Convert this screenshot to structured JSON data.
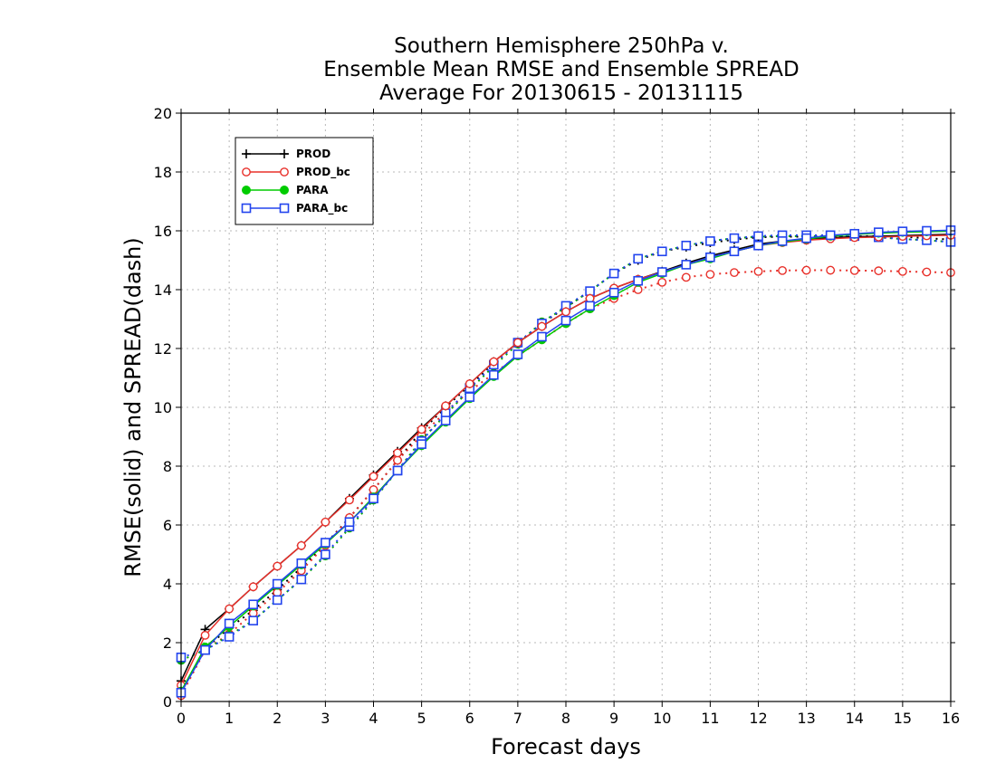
{
  "chart_data": {
    "type": "line",
    "title": [
      "Southern Hemisphere 250hPa v.",
      "Ensemble Mean RMSE and Ensemble SPREAD",
      "Average For 20130615 - 20131115"
    ],
    "xlabel": "Forecast days",
    "ylabel": "RMSE(solid) and SPREAD(dash)",
    "xlim": [
      0,
      16
    ],
    "ylim": [
      0,
      20
    ],
    "xticks": [
      0,
      1,
      2,
      3,
      4,
      5,
      6,
      7,
      8,
      9,
      10,
      11,
      12,
      13,
      14,
      15,
      16
    ],
    "yticks": [
      0,
      2,
      4,
      6,
      8,
      10,
      12,
      14,
      16,
      18,
      20
    ],
    "grid": true,
    "legend_position": "top-left",
    "x": [
      0,
      0.5,
      1,
      1.5,
      2,
      2.5,
      3,
      3.5,
      4,
      4.5,
      5,
      5.5,
      6,
      6.5,
      7,
      7.5,
      8,
      8.5,
      9,
      9.5,
      10,
      10.5,
      11,
      11.5,
      12,
      12.5,
      13,
      13.5,
      14,
      14.5,
      15,
      15.5,
      16
    ],
    "series": [
      {
        "name": "PROD",
        "color": "#000000",
        "marker": "plus",
        "style": "solid",
        "values": [
          0.7,
          2.45,
          3.15,
          3.9,
          4.6,
          5.3,
          6.1,
          6.9,
          7.7,
          8.5,
          9.3,
          10.05,
          10.8,
          11.55,
          12.2,
          12.75,
          13.25,
          13.7,
          14.05,
          14.35,
          14.62,
          14.9,
          15.15,
          15.35,
          15.55,
          15.65,
          15.72,
          15.77,
          15.8,
          15.82,
          15.84,
          15.86,
          15.88
        ]
      },
      {
        "name": "PROD_bc",
        "color": "#e8302a",
        "marker": "circle",
        "style": "solid",
        "values": [
          0.55,
          2.25,
          3.15,
          3.9,
          4.6,
          5.3,
          6.1,
          6.85,
          7.65,
          8.45,
          9.25,
          10.05,
          10.8,
          11.55,
          12.2,
          12.75,
          13.25,
          13.7,
          14.05,
          14.35,
          14.6,
          14.85,
          15.1,
          15.3,
          15.5,
          15.6,
          15.68,
          15.73,
          15.77,
          15.79,
          15.81,
          15.83,
          15.85
        ]
      },
      {
        "name": "PARA",
        "color": "#00cc00",
        "marker": "filled-circle",
        "style": "solid",
        "values": [
          0.35,
          1.85,
          2.55,
          3.25,
          3.95,
          4.65,
          5.35,
          6.1,
          6.95,
          7.85,
          8.7,
          9.5,
          10.3,
          11.05,
          11.75,
          12.3,
          12.85,
          13.35,
          13.8,
          14.25,
          14.55,
          14.85,
          15.05,
          15.3,
          15.5,
          15.62,
          15.72,
          15.82,
          15.88,
          15.92,
          15.95,
          15.97,
          15.99
        ]
      },
      {
        "name": "PARA_bc",
        "color": "#2244ee",
        "marker": "square",
        "style": "solid",
        "values": [
          0.3,
          1.75,
          2.65,
          3.3,
          4.0,
          4.7,
          5.4,
          6.1,
          6.9,
          7.85,
          8.75,
          9.55,
          10.35,
          11.1,
          11.8,
          12.4,
          12.95,
          13.45,
          13.9,
          14.3,
          14.6,
          14.85,
          15.1,
          15.3,
          15.5,
          15.65,
          15.75,
          15.85,
          15.9,
          15.95,
          15.98,
          16.0,
          16.02
        ]
      },
      {
        "name": "",
        "color": "#000000",
        "marker": "plus",
        "style": "dash",
        "values": [
          0.2,
          1.8,
          2.5,
          3.1,
          3.8,
          4.55,
          5.35,
          6.25,
          7.2,
          8.2,
          9.2,
          10.0,
          10.75,
          11.5,
          12.2,
          12.85,
          13.4,
          13.95,
          14.55,
          15.0,
          15.3,
          15.45,
          15.6,
          15.7,
          15.78,
          15.8,
          15.8,
          15.82,
          15.82,
          15.82,
          15.8,
          15.75,
          15.7
        ]
      },
      {
        "name": "",
        "color": "#e8302a",
        "marker": "circle",
        "style": "dash",
        "values": [
          0.2,
          1.75,
          2.3,
          3.0,
          3.7,
          4.45,
          5.3,
          6.25,
          7.2,
          8.2,
          9.05,
          9.85,
          10.55,
          11.15,
          11.75,
          12.3,
          12.85,
          13.35,
          13.7,
          14.0,
          14.25,
          14.42,
          14.52,
          14.58,
          14.62,
          14.65,
          14.66,
          14.66,
          14.65,
          14.64,
          14.62,
          14.6,
          14.58
        ]
      },
      {
        "name": "",
        "color": "#00aa00",
        "marker": "filled-circle",
        "style": "dash",
        "values": [
          1.4,
          1.75,
          2.25,
          2.75,
          3.45,
          4.15,
          4.95,
          5.9,
          6.85,
          7.85,
          8.9,
          9.75,
          10.6,
          11.4,
          12.15,
          12.9,
          13.4,
          13.95,
          14.55,
          15.05,
          15.3,
          15.5,
          15.65,
          15.75,
          15.8,
          15.82,
          15.82,
          15.82,
          15.8,
          15.78,
          15.72,
          15.68,
          15.62
        ]
      },
      {
        "name": "",
        "color": "#2244ee",
        "marker": "square",
        "style": "dash",
        "values": [
          1.5,
          1.75,
          2.2,
          2.75,
          3.45,
          4.15,
          5.0,
          5.95,
          6.9,
          7.85,
          8.85,
          9.8,
          10.65,
          11.45,
          12.2,
          12.85,
          13.45,
          13.95,
          14.55,
          15.05,
          15.3,
          15.5,
          15.65,
          15.75,
          15.82,
          15.85,
          15.85,
          15.85,
          15.82,
          15.78,
          15.72,
          15.68,
          15.62
        ]
      }
    ]
  }
}
